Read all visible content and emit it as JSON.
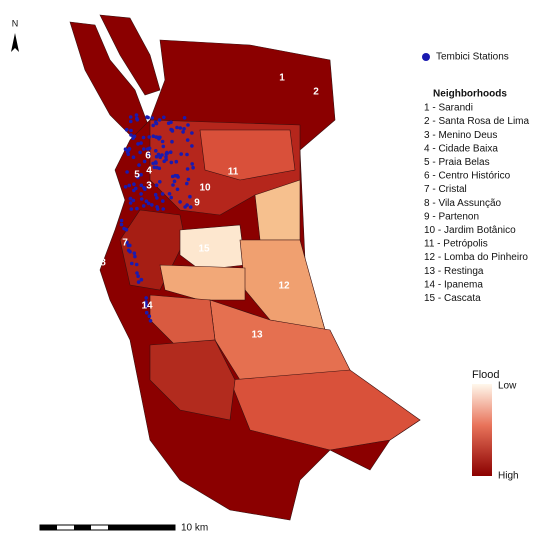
{
  "north_arrow": "N",
  "legend": {
    "stations": "Tembici Stations",
    "neighborhoods_title": "Neighborhoods",
    "neighborhoods": [
      "1 - Sarandi",
      "2 - Santa Rosa de Lima",
      "3 - Menino Deus",
      "4 - Cidade Baixa",
      "5 - Praia Belas",
      "6 - Centro Histórico",
      "7 - Cristal",
      "8 - Vila Assunção",
      "9 - Partenon",
      "10 - Jardim Botânico",
      "11 - Petrópolis",
      "12 - Lomba do Pinheiro",
      "13 - Restinga",
      "14 - Ipanema",
      "15 - Cascata"
    ],
    "flood_title": "Flood",
    "flood_low": "Low",
    "flood_high": "High"
  },
  "map_labels": [
    "1",
    "2",
    "3",
    "4",
    "5",
    "6",
    "7",
    "8",
    "9",
    "10",
    "11",
    "12",
    "13",
    "14",
    "15"
  ],
  "scale_bar": "10 km"
}
